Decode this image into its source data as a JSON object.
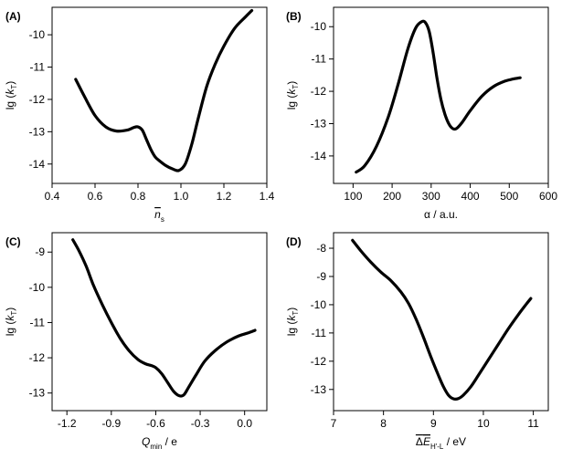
{
  "figure": {
    "ylabel_prefix": "lg (",
    "ylabel_var": "k",
    "ylabel_sub": "T",
    "ylabel_suffix": ")"
  },
  "chart_data": [
    {
      "id": "A",
      "type": "line",
      "panel_label": "(A)",
      "xlabel": {
        "var": "n",
        "bar": true,
        "sub": "s",
        "unit": ""
      },
      "xlim": [
        0.4,
        1.4
      ],
      "ylim": [
        -14.6,
        -9.15
      ],
      "xticks": [
        0.4,
        0.6,
        0.8,
        1.0,
        1.2,
        1.4
      ],
      "xtick_labels": [
        "0.4",
        "0.6",
        "0.8",
        "1.0",
        "1.2",
        "1.4"
      ],
      "yticks": [
        -14,
        -13,
        -12,
        -11,
        -10
      ],
      "ytick_labels": [
        "-14",
        "-13",
        "-12",
        "-11",
        "-10"
      ],
      "x": [
        0.51,
        0.55,
        0.6,
        0.65,
        0.7,
        0.75,
        0.78,
        0.8,
        0.82,
        0.84,
        0.86,
        0.88,
        0.9,
        0.93,
        0.96,
        0.99,
        1.02,
        1.05,
        1.08,
        1.12,
        1.16,
        1.2,
        1.25,
        1.3,
        1.33
      ],
      "y": [
        -11.38,
        -11.9,
        -12.5,
        -12.85,
        -12.98,
        -12.95,
        -12.87,
        -12.85,
        -12.95,
        -13.25,
        -13.55,
        -13.78,
        -13.9,
        -14.05,
        -14.15,
        -14.2,
        -14.0,
        -13.4,
        -12.6,
        -11.6,
        -10.9,
        -10.35,
        -9.8,
        -9.45,
        -9.25
      ]
    },
    {
      "id": "B",
      "type": "line",
      "panel_label": "(B)",
      "xlabel": {
        "var": "α / a.u.",
        "bar": false,
        "sub": "",
        "unit": ""
      },
      "xlim": [
        50,
        600
      ],
      "ylim": [
        -14.85,
        -9.4
      ],
      "xticks": [
        100,
        200,
        300,
        400,
        500,
        600
      ],
      "xtick_labels": [
        "100",
        "200",
        "300",
        "400",
        "500",
        "600"
      ],
      "yticks": [
        -14,
        -13,
        -12,
        -11,
        -10
      ],
      "ytick_labels": [
        "-14",
        "-13",
        "-12",
        "-11",
        "-10"
      ],
      "x": [
        108,
        130,
        160,
        190,
        215,
        240,
        260,
        275,
        285,
        295,
        305,
        315,
        325,
        335,
        345,
        355,
        365,
        380,
        400,
        430,
        460,
        490,
        510,
        528
      ],
      "y": [
        -14.5,
        -14.3,
        -13.7,
        -12.8,
        -11.8,
        -10.7,
        -10.05,
        -9.85,
        -9.87,
        -10.15,
        -10.8,
        -11.6,
        -12.25,
        -12.7,
        -13.0,
        -13.15,
        -13.15,
        -12.95,
        -12.6,
        -12.15,
        -11.85,
        -11.68,
        -11.62,
        -11.58
      ]
    },
    {
      "id": "C",
      "type": "line",
      "panel_label": "(C)",
      "xlabel": {
        "var": "Q",
        "bar": false,
        "sub": "min",
        "unit": " / e"
      },
      "xlim": [
        -1.3,
        0.15
      ],
      "ylim": [
        -13.5,
        -8.45
      ],
      "xticks": [
        -1.2,
        -0.9,
        -0.6,
        -0.3,
        0.0
      ],
      "xtick_labels": [
        "-1.2",
        "-0.9",
        "-0.6",
        "-0.3",
        "0.0"
      ],
      "yticks": [
        -13,
        -12,
        -11,
        -10,
        -9
      ],
      "ytick_labels": [
        "-13",
        "-12",
        "-11",
        "-10",
        "-9"
      ],
      "x": [
        -1.16,
        -1.12,
        -1.07,
        -1.02,
        -0.96,
        -0.9,
        -0.84,
        -0.78,
        -0.72,
        -0.67,
        -0.63,
        -0.6,
        -0.56,
        -0.52,
        -0.48,
        -0.44,
        -0.41,
        -0.38,
        -0.33,
        -0.27,
        -0.2,
        -0.12,
        -0.04,
        0.02,
        0.07
      ],
      "y": [
        -8.65,
        -8.95,
        -9.4,
        -9.95,
        -10.5,
        -11.0,
        -11.45,
        -11.8,
        -12.05,
        -12.17,
        -12.22,
        -12.28,
        -12.45,
        -12.7,
        -12.95,
        -13.08,
        -13.05,
        -12.85,
        -12.5,
        -12.1,
        -11.8,
        -11.55,
        -11.38,
        -11.3,
        -11.22
      ]
    },
    {
      "id": "D",
      "type": "line",
      "panel_label": "(D)",
      "xlabel": {
        "var": "ΔE",
        "bar": true,
        "sub": "H'-L",
        "unit": " / eV"
      },
      "xlim": [
        7,
        11.3
      ],
      "ylim": [
        -13.75,
        -7.45
      ],
      "xticks": [
        7,
        8,
        9,
        10,
        11
      ],
      "xtick_labels": [
        "7",
        "8",
        "9",
        "10",
        "11"
      ],
      "yticks": [
        -13,
        -12,
        -11,
        -10,
        -9,
        -8
      ],
      "ytick_labels": [
        "-13",
        "-12",
        "-11",
        "-10",
        "-9",
        "-8"
      ],
      "x": [
        7.38,
        7.55,
        7.75,
        7.95,
        8.15,
        8.35,
        8.5,
        8.65,
        8.8,
        8.95,
        9.1,
        9.2,
        9.3,
        9.4,
        9.5,
        9.6,
        9.75,
        9.9,
        10.1,
        10.3,
        10.5,
        10.7,
        10.85,
        10.95
      ],
      "y": [
        -7.72,
        -8.1,
        -8.5,
        -8.85,
        -9.15,
        -9.55,
        -9.95,
        -10.5,
        -11.15,
        -11.85,
        -12.5,
        -12.9,
        -13.2,
        -13.33,
        -13.32,
        -13.2,
        -12.9,
        -12.5,
        -11.95,
        -11.4,
        -10.85,
        -10.35,
        -10.0,
        -9.78
      ]
    }
  ]
}
